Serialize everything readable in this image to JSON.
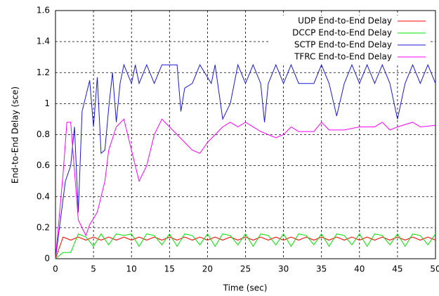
{
  "chart_data": {
    "type": "line",
    "xlabel": "Time (sec)",
    "ylabel": "End-to-End Delay (sce)",
    "xlim": [
      0,
      50
    ],
    "ylim": [
      0,
      1.6
    ],
    "xticks": [
      0,
      5,
      10,
      15,
      20,
      25,
      30,
      35,
      40,
      45,
      50
    ],
    "yticks": [
      0,
      0.2,
      0.4,
      0.6,
      0.8,
      1,
      1.2,
      1.4,
      1.6
    ],
    "grid": true,
    "legend": "upper right",
    "series": [
      {
        "name": "UDP End-to-End Delay",
        "color": "#ff0000",
        "x": [
          0,
          1,
          2,
          3,
          4,
          5,
          6,
          7,
          8,
          9,
          10,
          11,
          12,
          13,
          14,
          15,
          16,
          17,
          18,
          19,
          20,
          21,
          22,
          23,
          24,
          25,
          26,
          27,
          28,
          29,
          30,
          31,
          32,
          33,
          34,
          35,
          36,
          37,
          38,
          39,
          40,
          41,
          42,
          43,
          44,
          45,
          46,
          47,
          48,
          49,
          50
        ],
        "values": [
          0,
          0.14,
          0.12,
          0.14,
          0.12,
          0.14,
          0.12,
          0.14,
          0.12,
          0.14,
          0.12,
          0.14,
          0.12,
          0.14,
          0.12,
          0.14,
          0.12,
          0.14,
          0.12,
          0.14,
          0.12,
          0.14,
          0.12,
          0.14,
          0.12,
          0.14,
          0.12,
          0.14,
          0.12,
          0.14,
          0.12,
          0.14,
          0.12,
          0.14,
          0.12,
          0.14,
          0.12,
          0.14,
          0.12,
          0.14,
          0.12,
          0.14,
          0.12,
          0.14,
          0.12,
          0.14,
          0.12,
          0.14,
          0.12,
          0.14,
          0.12
        ]
      },
      {
        "name": "DCCP End-to-End Delay",
        "color": "#00e000",
        "x": [
          0,
          1,
          2,
          3,
          4,
          5,
          6,
          7,
          8,
          9,
          10,
          11,
          12,
          13,
          14,
          15,
          16,
          17,
          18,
          19,
          20,
          21,
          22,
          23,
          24,
          25,
          26,
          27,
          28,
          29,
          30,
          31,
          32,
          33,
          34,
          35,
          36,
          37,
          38,
          39,
          40,
          41,
          42,
          43,
          44,
          45,
          46,
          47,
          48,
          49,
          50
        ],
        "values": [
          0,
          0.04,
          0.04,
          0.16,
          0.14,
          0.08,
          0.16,
          0.09,
          0.16,
          0.15,
          0.16,
          0.08,
          0.16,
          0.15,
          0.09,
          0.16,
          0.08,
          0.16,
          0.15,
          0.09,
          0.16,
          0.08,
          0.16,
          0.15,
          0.09,
          0.16,
          0.08,
          0.16,
          0.15,
          0.09,
          0.16,
          0.08,
          0.16,
          0.15,
          0.09,
          0.16,
          0.08,
          0.16,
          0.15,
          0.09,
          0.16,
          0.08,
          0.16,
          0.15,
          0.09,
          0.16,
          0.08,
          0.16,
          0.15,
          0.09,
          0.16
        ]
      },
      {
        "name": "SCTP End-to-End Delay",
        "color": "#1a1ad0",
        "x": [
          0,
          1.3,
          2,
          2.5,
          3,
          3.5,
          4.5,
          5,
          5.5,
          6,
          6.5,
          7,
          7.5,
          8,
          8.5,
          9,
          10,
          10.5,
          11,
          12,
          13,
          14,
          16,
          16.5,
          17,
          18,
          19,
          20.5,
          21,
          22,
          23,
          24,
          25,
          26,
          27,
          27.5,
          28,
          29,
          30,
          31,
          32,
          34,
          35,
          36,
          37,
          38,
          39,
          40,
          41,
          42,
          43,
          44,
          45,
          46,
          47,
          48,
          49,
          50
        ],
        "values": [
          0,
          0.5,
          0.6,
          0.85,
          0.3,
          0.95,
          1.15,
          0.85,
          1.17,
          0.68,
          0.7,
          0.97,
          1.2,
          0.88,
          1.13,
          1.25,
          1.13,
          1.25,
          1.13,
          1.25,
          1.13,
          1.25,
          1.25,
          0.95,
          1.1,
          1.13,
          1.25,
          1.13,
          1.25,
          0.9,
          1.0,
          1.25,
          1.13,
          1.25,
          1.13,
          0.88,
          1.13,
          1.25,
          1.13,
          1.25,
          1.13,
          1.13,
          1.25,
          1.13,
          0.92,
          1.13,
          1.25,
          1.13,
          1.25,
          1.13,
          1.25,
          1.13,
          0.9,
          1.13,
          1.25,
          1.13,
          1.25,
          1.13
        ]
      },
      {
        "name": "TFRC End-to-End Delay",
        "color": "#ff00ff",
        "x": [
          0,
          1,
          1.5,
          2,
          3,
          3.5,
          4,
          4.5,
          5.5,
          6.5,
          7,
          8,
          9,
          10,
          11,
          12,
          13,
          14,
          15,
          16,
          17,
          18,
          19,
          20,
          21,
          22,
          23,
          24,
          25,
          26,
          27,
          28,
          29,
          30,
          31,
          32,
          34,
          35,
          36,
          38,
          40,
          42,
          43,
          44,
          45,
          47,
          48,
          50
        ],
        "values": [
          0,
          0.55,
          0.88,
          0.88,
          0.25,
          0.2,
          0.15,
          0.22,
          0.3,
          0.5,
          0.7,
          0.85,
          0.9,
          0.7,
          0.5,
          0.6,
          0.8,
          0.9,
          0.85,
          0.8,
          0.75,
          0.7,
          0.68,
          0.75,
          0.8,
          0.85,
          0.88,
          0.85,
          0.88,
          0.85,
          0.82,
          0.8,
          0.78,
          0.8,
          0.85,
          0.82,
          0.82,
          0.88,
          0.83,
          0.83,
          0.85,
          0.85,
          0.88,
          0.83,
          0.85,
          0.88,
          0.85,
          0.86
        ]
      }
    ]
  }
}
